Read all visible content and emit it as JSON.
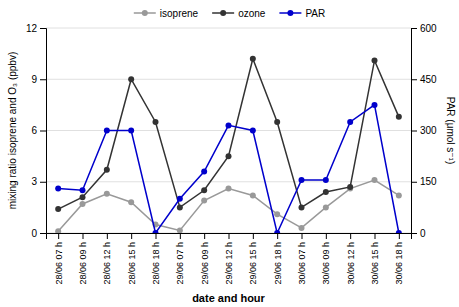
{
  "chart_data": {
    "type": "line",
    "categories": [
      "28/06 07 h",
      "28/06 09 h",
      "28/06 12 h",
      "28/06 15 h",
      "28/06 18 h",
      "29/06 07 h",
      "29/06 09 h",
      "29/06 12 h",
      "29/06 15 h",
      "29/06 18 h",
      "30/06 07 h",
      "30/06 09 h",
      "30/06 12 h",
      "30/06 15 h",
      "30/06 18 h"
    ],
    "xlabel": "date and hour",
    "ylabel": "mixing ratio isoprene and O₃ (ppbv)",
    "y2label": "PAR (μmol s⁻¹)",
    "ylim": [
      0,
      12
    ],
    "yticks": [
      0,
      3,
      6,
      9,
      12
    ],
    "y2lim": [
      0,
      600
    ],
    "y2ticks": [
      0,
      150,
      300,
      450,
      600
    ],
    "grid": true,
    "legend": "top",
    "marker": "circle",
    "series": [
      {
        "name": "isoprene",
        "color": "#999999",
        "values": [
          0.1,
          1.7,
          2.3,
          1.8,
          0.5,
          0.15,
          1.9,
          2.6,
          2.2,
          1.1,
          0.3,
          1.5,
          2.6,
          3.1,
          2.2
        ]
      },
      {
        "name": "ozone",
        "color": "#333333",
        "values": [
          1.4,
          2.1,
          3.7,
          9.0,
          6.5,
          1.5,
          2.5,
          4.5,
          10.2,
          6.5,
          1.5,
          2.4,
          2.7,
          10.1,
          6.8
        ]
      },
      {
        "name": "PAR",
        "color": "#0000cc",
        "axis": "y2",
        "values": [
          130,
          125,
          300,
          300,
          0,
          100,
          180,
          315,
          300,
          0,
          155,
          155,
          325,
          375,
          0
        ]
      }
    ]
  }
}
